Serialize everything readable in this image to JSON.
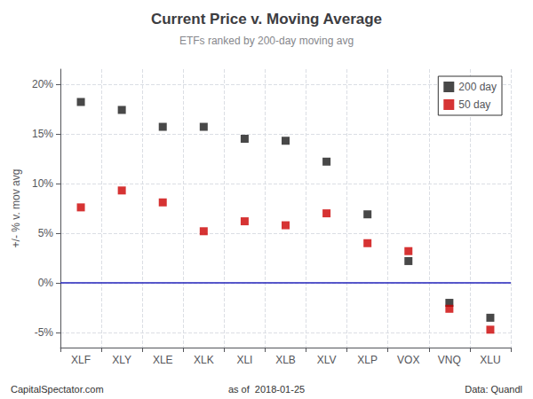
{
  "chart_data": {
    "type": "scatter",
    "title": "Current Price v. Moving Average",
    "subtitle": "ETFs ranked by 200-day moving avg",
    "ylabel": "+/- % v. mov avg",
    "categories": [
      "XLF",
      "XLY",
      "XLE",
      "XLK",
      "XLI",
      "XLB",
      "XLV",
      "XLP",
      "VOX",
      "VNQ",
      "XLU"
    ],
    "series": [
      {
        "name": "200 day",
        "color": "#1a1a1a",
        "marker": "square",
        "values": [
          18.2,
          17.4,
          15.7,
          15.7,
          14.5,
          14.3,
          12.2,
          6.9,
          2.2,
          -2.0,
          -3.5
        ]
      },
      {
        "name": "50 day",
        "color": "#cc0000",
        "marker": "square",
        "values": [
          7.6,
          9.3,
          8.1,
          5.2,
          6.2,
          5.8,
          7.0,
          4.0,
          3.2,
          -2.6,
          -4.7
        ]
      }
    ],
    "reference_lines": [
      {
        "y": 0,
        "color": "#2222bb"
      }
    ],
    "ylim": [
      -6.5,
      21.5
    ],
    "yticks": [
      {
        "value": -5,
        "label": "-5%"
      },
      {
        "value": 0,
        "label": "0%"
      },
      {
        "value": 5,
        "label": "5%"
      },
      {
        "value": 10,
        "label": "10%"
      },
      {
        "value": 15,
        "label": "15%"
      },
      {
        "value": 20,
        "label": "20%"
      }
    ],
    "grid": true,
    "legend": "upper right",
    "annotations": [
      "CapitalSpectator.com",
      "as of  2018-01-25",
      "Data: Quandl"
    ]
  }
}
